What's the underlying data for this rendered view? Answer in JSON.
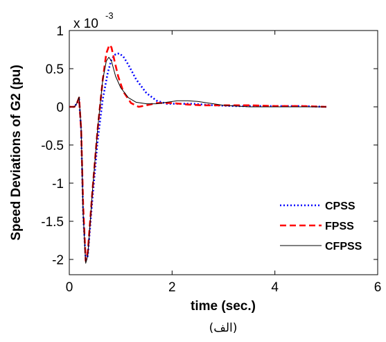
{
  "chart_data": {
    "type": "line",
    "xlabel": "time (sec.)",
    "ylabel": "Speed Deviations of G2 (pu)",
    "axis_scale": {
      "base": "x 10",
      "exponent": "-3"
    },
    "caption": "(الف)",
    "xlim": [
      0,
      6
    ],
    "ylim": [
      -2.2,
      1.0
    ],
    "x_ticks": [
      0,
      2,
      4,
      6
    ],
    "x_tick_labels": [
      "0",
      "2",
      "4",
      "6"
    ],
    "y_ticks": [
      1,
      0.5,
      0,
      -0.5,
      -1,
      -1.5,
      -2
    ],
    "y_tick_labels": [
      "1",
      "0.5",
      "0",
      "-0.5",
      "-1",
      "-1.5",
      "-2"
    ],
    "grid": false,
    "legend_position": "bottom-right",
    "series": [
      {
        "name": "CPSS",
        "color": "#0000ff",
        "style": "dotted",
        "x": [
          0,
          0.1,
          0.15,
          0.19,
          0.23,
          0.27,
          0.32,
          0.36,
          0.45,
          0.55,
          0.65,
          0.75,
          0.82,
          0.9,
          0.97,
          1.05,
          1.15,
          1.3,
          1.5,
          1.7,
          1.9,
          2.1,
          2.4,
          2.8,
          3.2,
          3.6,
          4.0,
          4.5,
          5.0
        ],
        "y": [
          0,
          0,
          0.05,
          0.1,
          -0.3,
          -1.4,
          -2.02,
          -1.95,
          -1.2,
          -0.45,
          0.1,
          0.45,
          0.62,
          0.69,
          0.7,
          0.66,
          0.55,
          0.36,
          0.18,
          0.08,
          0.04,
          0.04,
          0.04,
          0.02,
          0.01,
          0.01,
          0.01,
          0.01,
          0.0
        ]
      },
      {
        "name": "FPSS",
        "color": "#ff0000",
        "style": "dashed",
        "x": [
          0,
          0.1,
          0.15,
          0.19,
          0.23,
          0.27,
          0.32,
          0.36,
          0.45,
          0.55,
          0.65,
          0.72,
          0.78,
          0.82,
          0.88,
          0.95,
          1.05,
          1.2,
          1.35,
          1.5,
          1.7,
          2.0,
          2.3,
          2.6,
          3.0,
          3.5,
          4.0,
          4.5,
          5.0
        ],
        "y": [
          0,
          0,
          0.05,
          0.12,
          -0.3,
          -1.3,
          -2.02,
          -1.9,
          -1.1,
          -0.3,
          0.35,
          0.7,
          0.81,
          0.78,
          0.6,
          0.4,
          0.2,
          0.05,
          0.0,
          0.02,
          0.05,
          0.05,
          0.03,
          0.02,
          0.02,
          0.02,
          0.01,
          0.01,
          0.0
        ]
      },
      {
        "name": "CFPSS",
        "color": "#000000",
        "style": "solid",
        "x": [
          0,
          0.1,
          0.15,
          0.19,
          0.23,
          0.27,
          0.32,
          0.36,
          0.45,
          0.55,
          0.65,
          0.72,
          0.77,
          0.82,
          0.9,
          1.0,
          1.15,
          1.3,
          1.5,
          1.7,
          1.9,
          2.1,
          2.3,
          2.5,
          2.7,
          3.0,
          3.5,
          4.0,
          5.0
        ],
        "y": [
          0,
          0,
          0.05,
          0.13,
          -0.3,
          -1.4,
          -2.05,
          -1.95,
          -1.1,
          -0.3,
          0.35,
          0.6,
          0.65,
          0.6,
          0.4,
          0.25,
          0.12,
          0.06,
          0.04,
          0.04,
          0.06,
          0.08,
          0.08,
          0.07,
          0.05,
          0.02,
          0.0,
          0.0,
          0.0
        ]
      }
    ]
  }
}
